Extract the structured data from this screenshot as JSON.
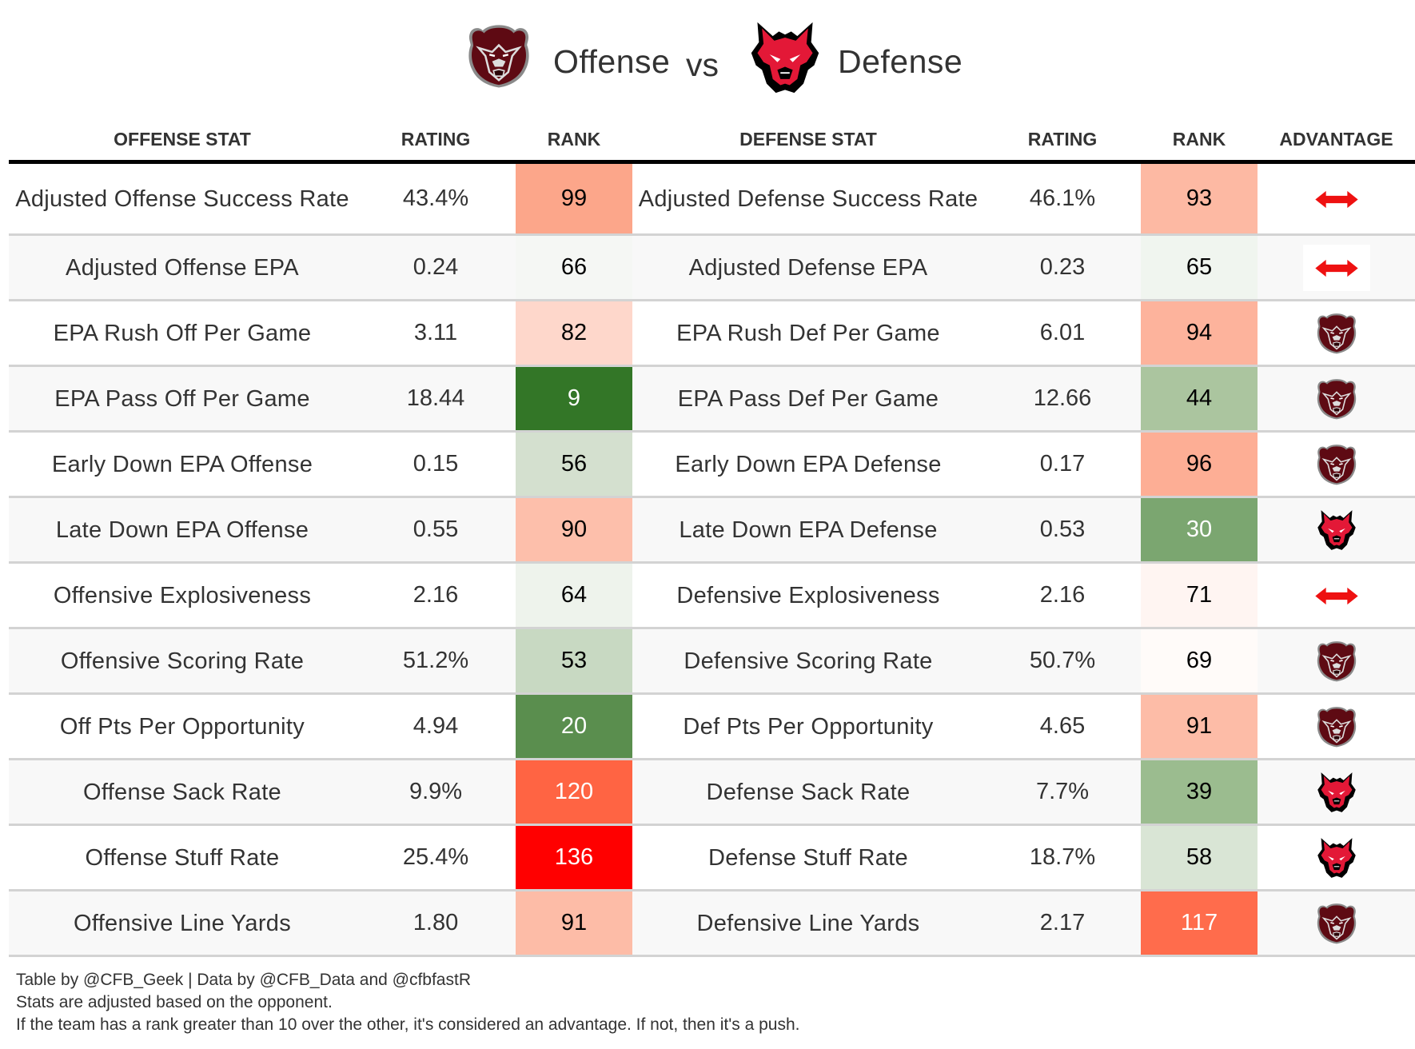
{
  "title": {
    "offense_team_icon": "bear-logo",
    "offense_label": "Offense",
    "vs_label": "vs",
    "defense_team_icon": "red-wolf-logo",
    "defense_label": "Defense"
  },
  "colors": {
    "offense_team_primary": "#5e0a13",
    "defense_team_primary": "#e31837",
    "push_arrow": "#ee1111",
    "header_rule": "#000000",
    "row_border": "#d3d3d3",
    "alt_row_bg": "#f8f8f8"
  },
  "table": {
    "headers": [
      "OFFENSE STAT",
      "RATING",
      "RANK",
      "DEFENSE STAT",
      "RATING",
      "RANK",
      "ADVANTAGE"
    ],
    "rows": [
      {
        "off_stat": "Adjusted Offense Success Rate",
        "off_rating": "43.4%",
        "off_rank": "99",
        "off_rank_color": "#fca68a",
        "off_rank_text": "dark",
        "def_stat": "Adjusted Defense Success Rate",
        "def_rating": "46.1%",
        "def_rank": "93",
        "def_rank_color": "#fdb9a3",
        "def_rank_text": "dark",
        "advantage": "push",
        "advantage_icon": "double-arrow-icon",
        "advantage_boxed": false
      },
      {
        "off_stat": "Adjusted Offense EPA",
        "off_rating": "0.24",
        "off_rank": "66",
        "off_rank_color": "#f5f7f4",
        "off_rank_text": "dark",
        "def_stat": "Adjusted Defense EPA",
        "def_rating": "0.23",
        "def_rank": "65",
        "def_rank_color": "#f0f5ef",
        "def_rank_text": "dark",
        "advantage": "push",
        "advantage_icon": "double-arrow-icon",
        "advantage_boxed": true
      },
      {
        "off_stat": "EPA Rush Off Per Game",
        "off_rating": "3.11",
        "off_rank": "82",
        "off_rank_color": "#fed7cb",
        "off_rank_text": "dark",
        "def_stat": "EPA Rush Def Per Game",
        "def_rating": "6.01",
        "def_rank": "94",
        "def_rank_color": "#fdb39c",
        "def_rank_text": "dark",
        "advantage": "offense",
        "advantage_icon": "bear-logo",
        "advantage_boxed": false
      },
      {
        "off_stat": "EPA Pass Off Per Game",
        "off_rating": "18.44",
        "off_rank": "9",
        "off_rank_color": "#337627",
        "off_rank_text": "light",
        "def_stat": "EPA Pass Def Per Game",
        "def_rating": "12.66",
        "def_rank": "44",
        "def_rank_color": "#abc59f",
        "def_rank_text": "dark",
        "advantage": "offense",
        "advantage_icon": "bear-logo",
        "advantage_boxed": false
      },
      {
        "off_stat": "Early Down EPA Offense",
        "off_rating": "0.15",
        "off_rank": "56",
        "off_rank_color": "#d4e0cf",
        "off_rank_text": "dark",
        "def_stat": "Early Down EPA Defense",
        "def_rating": "0.17",
        "def_rank": "96",
        "def_rank_color": "#fdae95",
        "def_rank_text": "dark",
        "advantage": "offense",
        "advantage_icon": "bear-logo",
        "advantage_boxed": false
      },
      {
        "off_stat": "Late Down EPA Offense",
        "off_rating": "0.55",
        "off_rank": "90",
        "off_rank_color": "#fdbfab",
        "off_rank_text": "dark",
        "def_stat": "Late Down EPA Defense",
        "def_rating": "0.53",
        "def_rank": "30",
        "def_rank_color": "#7ba670",
        "def_rank_text": "light",
        "advantage": "defense",
        "advantage_icon": "red-wolf-logo",
        "advantage_boxed": false
      },
      {
        "off_stat": "Offensive Explosiveness",
        "off_rating": "2.16",
        "off_rank": "64",
        "off_rank_color": "#eef3ec",
        "off_rank_text": "dark",
        "def_stat": "Defensive Explosiveness",
        "def_rating": "2.16",
        "def_rank": "71",
        "def_rank_color": "#fff5f2",
        "def_rank_text": "dark",
        "advantage": "push",
        "advantage_icon": "double-arrow-icon",
        "advantage_boxed": false
      },
      {
        "off_stat": "Offensive Scoring Rate",
        "off_rating": "51.2%",
        "off_rank": "53",
        "off_rank_color": "#c8d9c2",
        "off_rank_text": "dark",
        "def_stat": "Defensive Scoring Rate",
        "def_rating": "50.7%",
        "def_rank": "69",
        "def_rank_color": "#fffbf9",
        "def_rank_text": "dark",
        "advantage": "offense",
        "advantage_icon": "bear-logo",
        "advantage_boxed": false
      },
      {
        "off_stat": "Off Pts Per Opportunity",
        "off_rating": "4.94",
        "off_rank": "20",
        "off_rank_color": "#5a8e4e",
        "off_rank_text": "light",
        "def_stat": "Def Pts Per Opportunity",
        "def_rating": "4.65",
        "def_rank": "91",
        "def_rank_color": "#fdbca7",
        "def_rank_text": "dark",
        "advantage": "offense",
        "advantage_icon": "bear-logo",
        "advantage_boxed": false
      },
      {
        "off_stat": "Offense Sack Rate",
        "off_rating": "9.9%",
        "off_rank": "120",
        "off_rank_color": "#ff6443",
        "off_rank_text": "light",
        "def_stat": "Defense Sack Rate",
        "def_rating": "7.7%",
        "def_rank": "39",
        "def_rank_color": "#9bbc8f",
        "def_rank_text": "dark",
        "advantage": "defense",
        "advantage_icon": "red-wolf-logo",
        "advantage_boxed": false
      },
      {
        "off_stat": "Offense Stuff Rate",
        "off_rating": "25.4%",
        "off_rank": "136",
        "off_rank_color": "#ff0000",
        "off_rank_text": "light",
        "def_stat": "Defense Stuff Rate",
        "def_rating": "18.7%",
        "def_rank": "58",
        "def_rank_color": "#d9e5d5",
        "def_rank_text": "dark",
        "advantage": "defense",
        "advantage_icon": "red-wolf-logo",
        "advantage_boxed": false
      },
      {
        "off_stat": "Offensive Line Yards",
        "off_rating": "1.80",
        "off_rank": "91",
        "off_rank_color": "#fdbca7",
        "off_rank_text": "dark",
        "def_stat": "Defensive Line Yards",
        "def_rating": "2.17",
        "def_rank": "117",
        "def_rank_color": "#ff6c4c",
        "def_rank_text": "light",
        "advantage": "offense",
        "advantage_icon": "bear-logo",
        "advantage_boxed": false
      }
    ]
  },
  "footer": {
    "line1": "Table by @CFB_Geek | Data by @CFB_Data and @cfbfastR",
    "line2": "Stats are adjusted based on the opponent.",
    "line3": "If the team has a rank greater than 10 over the other, it's considered an advantage. If not, then it's a push."
  }
}
